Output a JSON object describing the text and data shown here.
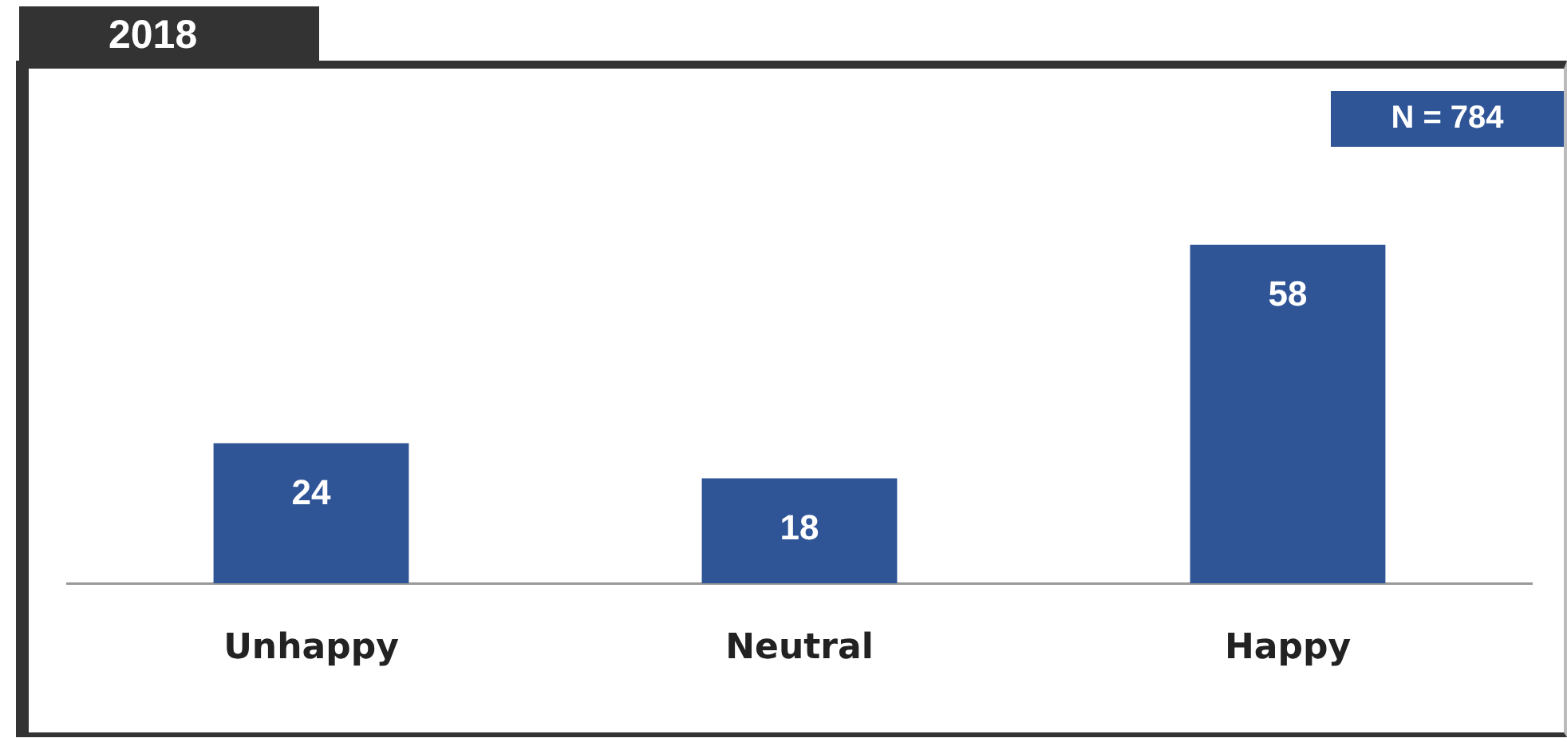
{
  "chart_data": {
    "type": "bar",
    "title": "2018",
    "categories": [
      "Unhappy",
      "Neutral",
      "Happy"
    ],
    "values": [
      24,
      18,
      58
    ],
    "color": "#2f5597",
    "data_labels": true,
    "annotations": [
      "N = 784"
    ],
    "grid": false,
    "legend": false,
    "tick_labels": "x"
  }
}
